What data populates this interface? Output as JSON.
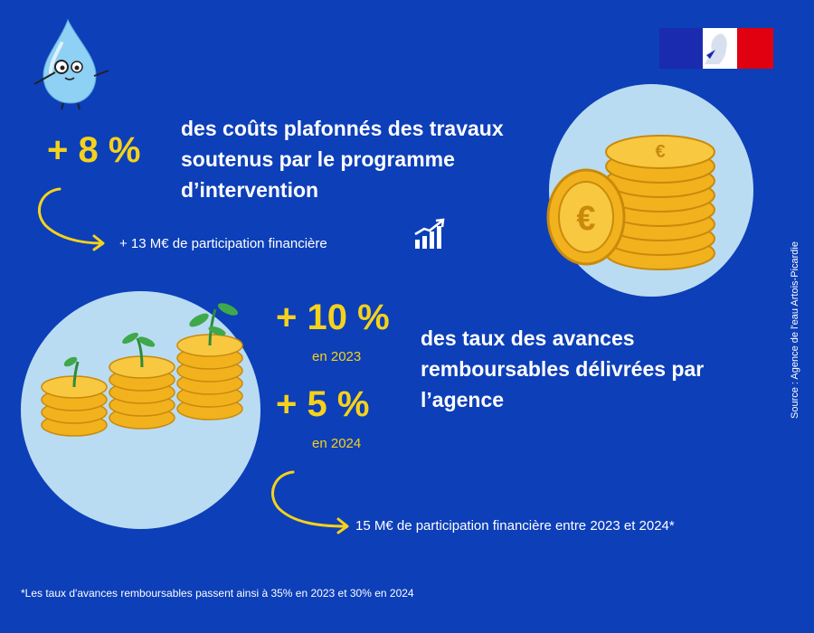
{
  "colors": {
    "background": "#0d3fb8",
    "accent_yellow": "#f5d21b",
    "circle_light_blue": "#b9dcf3",
    "flag_blue": "#1a2bb0",
    "flag_red": "#e1000f"
  },
  "section1": {
    "headline": "+ 8 %",
    "description_lines": [
      "des coûts plafonnés des travaux",
      "soutenus par le programme",
      "d’intervention"
    ],
    "note": "+ 13 M€ de participation financière",
    "note_icon": "growth-chart-icon"
  },
  "section2": {
    "headline_2023": "+ 10 %",
    "year_2023": "en 2023",
    "headline_2024": "+ 5 %",
    "year_2024": "en 2024",
    "description_lines": [
      "des taux des avances",
      "remboursables délivrées par",
      "l’agence"
    ],
    "note": "15 M€ de participation financière entre 2023 et 2024*"
  },
  "footnote": "*Les taux d'avances remboursables passent ainsi à 35% en 2023 et 30% en 2024",
  "source": "Source : Agence de l'eau Artois-Picardie",
  "icons": {
    "mascot": "water-drop-mascot-icon",
    "flag": "marianne-flag-icon",
    "coins": "euro-coin-stack-icon",
    "plants": "coin-plants-icon",
    "arrow": "curved-arrow-icon"
  }
}
